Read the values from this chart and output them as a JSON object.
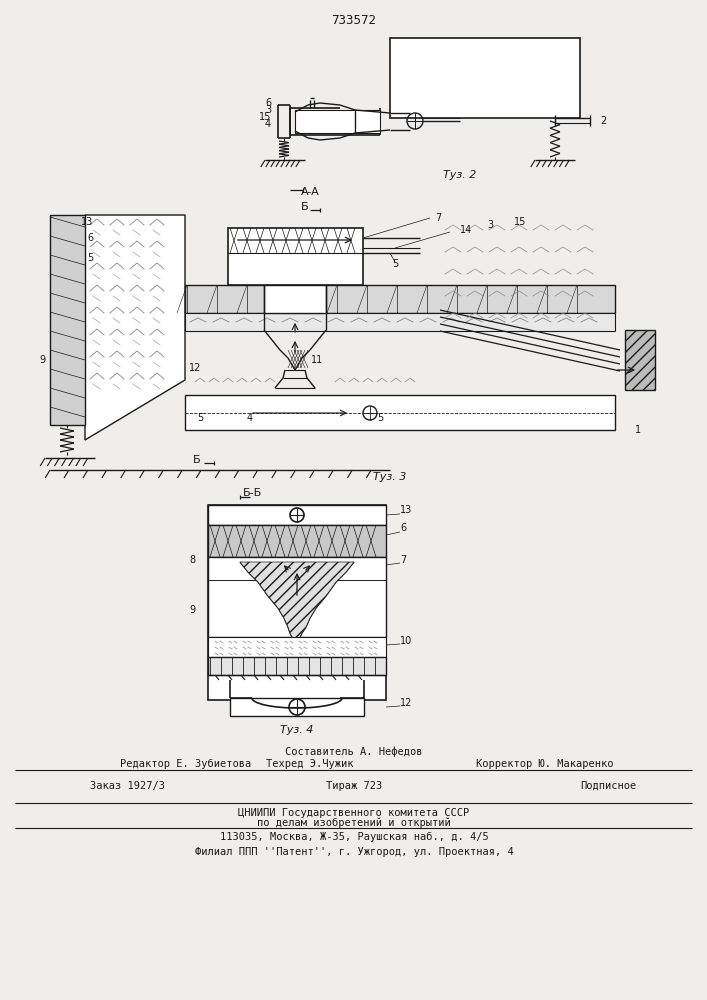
{
  "patent_number": "733572",
  "bg": "#f0eeea",
  "lc": "#1a1a1a",
  "footer_compiler_title": "Составитель А. Нефедов",
  "footer_editor": "Редактор Е. Зубиетова",
  "footer_tech": "Техред Э.Чужик",
  "footer_corrector": "Корректор Ю. Макаренко",
  "footer_order": "Заказ 1927/3",
  "footer_tiraz": "Тираж 723",
  "footer_podp": "Подписное",
  "footer_org1": "ЦНИИПИ Государственного комитета СССР",
  "footer_org2": "по делам изобретений и открытий",
  "footer_org3": "113035, Москва, Ж-35, Раушская наб., д. 4/5",
  "footer_filial": "Филиал ППП ''Патент'', г. Ужгород, ул. Проектная, 4"
}
